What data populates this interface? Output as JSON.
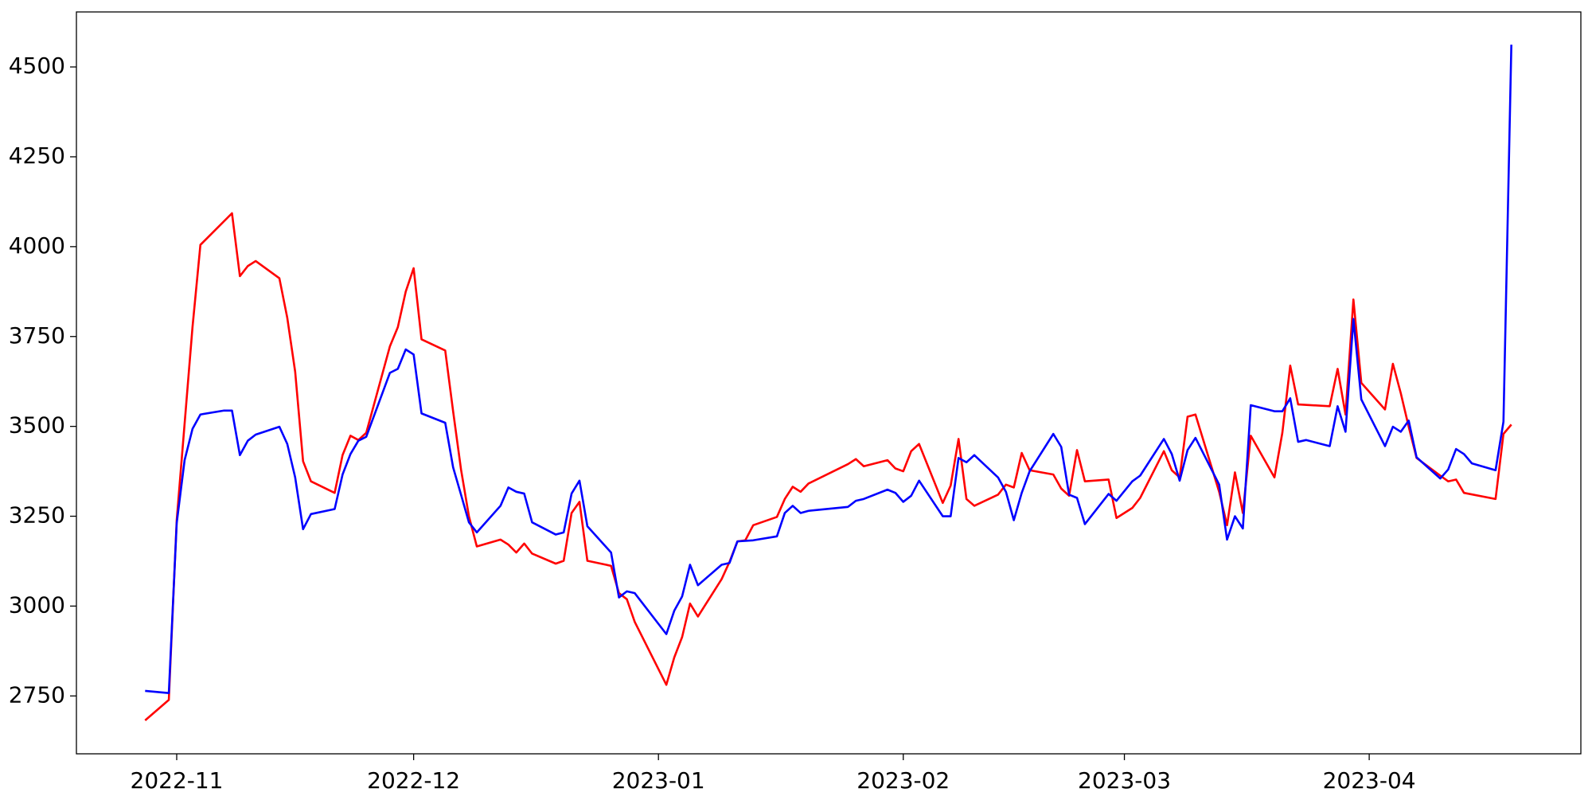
{
  "chart_data": {
    "type": "line",
    "xlim": [
      19284.3,
      19474.8
    ],
    "ylim": [
      2589,
      4653
    ],
    "xticks": [
      {
        "value": 19297,
        "label": "2022-11"
      },
      {
        "value": 19327,
        "label": "2022-12"
      },
      {
        "value": 19358,
        "label": "2023-01"
      },
      {
        "value": 19389,
        "label": "2023-02"
      },
      {
        "value": 19417,
        "label": "2023-03"
      },
      {
        "value": 19448,
        "label": "2023-04"
      }
    ],
    "yticks": [
      2750,
      3000,
      3250,
      3500,
      3750,
      4000,
      4250,
      4500
    ],
    "grid": false,
    "series": [
      {
        "color": "#ff0000",
        "x": [
          19293,
          19296,
          19297,
          19299,
          19300,
          19304,
          19305,
          19306,
          19307,
          19310,
          19311,
          19312,
          19313,
          19314,
          19317,
          19318,
          19319,
          19320,
          19321,
          19324,
          19325,
          19326,
          19327,
          19328,
          19331,
          19332,
          19333,
          19334,
          19335,
          19338,
          19339,
          19340,
          19341,
          19342,
          19345,
          19346,
          19347,
          19348,
          19349,
          19352,
          19353,
          19354,
          19355,
          19359,
          19360,
          19361,
          19362,
          19363,
          19366,
          19367,
          19368,
          19369,
          19370,
          19373,
          19374,
          19375,
          19376,
          19377,
          19382,
          19383,
          19384,
          19387,
          19388,
          19389,
          19390,
          19391,
          19394,
          19395,
          19396,
          19397,
          19398,
          19401,
          19402,
          19403,
          19404,
          19405,
          19408,
          19409,
          19410,
          19411,
          19412,
          19415,
          19416,
          19418,
          19419,
          19422,
          19423,
          19424,
          19425,
          19426,
          19429,
          19430,
          19431,
          19432,
          19433,
          19436,
          19437,
          19438,
          19439,
          19443,
          19444,
          19445,
          19446,
          19447,
          19450,
          19451,
          19452,
          19453,
          19454,
          19457,
          19458,
          19459,
          19460,
          19464,
          19465,
          19466
        ],
        "values": [
          2682,
          2739,
          3239,
          3776,
          4005,
          4093,
          3918,
          3946,
          3960,
          3912,
          3802,
          3652,
          3403,
          3347,
          3315,
          3420,
          3474,
          3462,
          3482,
          3723,
          3776,
          3875,
          3940,
          3742,
          3711,
          3542,
          3380,
          3250,
          3166,
          3185,
          3171,
          3149,
          3174,
          3146,
          3118,
          3126,
          3259,
          3290,
          3126,
          3112,
          3036,
          3019,
          2956,
          2781,
          2857,
          2914,
          3007,
          2971,
          3075,
          3123,
          3180,
          3183,
          3225,
          3248,
          3298,
          3332,
          3318,
          3341,
          3395,
          3409,
          3389,
          3406,
          3383,
          3375,
          3431,
          3451,
          3287,
          3335,
          3465,
          3298,
          3279,
          3310,
          3338,
          3330,
          3426,
          3378,
          3366,
          3327,
          3307,
          3434,
          3347,
          3352,
          3245,
          3273,
          3301,
          3431,
          3378,
          3358,
          3527,
          3533,
          3318,
          3225,
          3372,
          3259,
          3474,
          3358,
          3482,
          3669,
          3561,
          3556,
          3660,
          3533,
          3853,
          3621,
          3547,
          3674,
          3592,
          3499,
          3412,
          3363,
          3347,
          3352,
          3315,
          3298,
          3479,
          3505
        ]
      },
      {
        "color": "#0000ff",
        "x": [
          19293,
          19296,
          19297,
          19298,
          19299,
          19300,
          19303,
          19304,
          19305,
          19306,
          19307,
          19310,
          19311,
          19312,
          19313,
          19314,
          19317,
          19318,
          19319,
          19320,
          19321,
          19324,
          19325,
          19326,
          19327,
          19328,
          19331,
          19332,
          19333,
          19334,
          19335,
          19338,
          19339,
          19340,
          19341,
          19342,
          19345,
          19346,
          19347,
          19348,
          19349,
          19352,
          19353,
          19354,
          19355,
          19359,
          19360,
          19361,
          19362,
          19363,
          19366,
          19367,
          19368,
          19370,
          19373,
          19374,
          19375,
          19376,
          19377,
          19382,
          19383,
          19384,
          19387,
          19388,
          19389,
          19390,
          19391,
          19394,
          19395,
          19396,
          19397,
          19398,
          19401,
          19402,
          19403,
          19404,
          19405,
          19408,
          19409,
          19410,
          19411,
          19412,
          19415,
          19416,
          19418,
          19419,
          19422,
          19423,
          19424,
          19425,
          19426,
          19429,
          19430,
          19431,
          19432,
          19433,
          19436,
          19437,
          19438,
          19439,
          19440,
          19443,
          19444,
          19445,
          19446,
          19447,
          19450,
          19451,
          19452,
          19453,
          19454,
          19457,
          19458,
          19459,
          19460,
          19461,
          19464,
          19465,
          19466
        ],
        "values": [
          2764,
          2758,
          3231,
          3406,
          3493,
          3533,
          3544,
          3544,
          3420,
          3460,
          3477,
          3499,
          3451,
          3358,
          3214,
          3256,
          3270,
          3366,
          3423,
          3460,
          3471,
          3649,
          3660,
          3714,
          3700,
          3536,
          3510,
          3386,
          3310,
          3233,
          3205,
          3279,
          3330,
          3318,
          3313,
          3233,
          3199,
          3205,
          3313,
          3349,
          3222,
          3149,
          3024,
          3041,
          3036,
          2922,
          2987,
          3027,
          3115,
          3058,
          3115,
          3120,
          3180,
          3183,
          3194,
          3259,
          3279,
          3259,
          3265,
          3276,
          3293,
          3298,
          3324,
          3315,
          3290,
          3307,
          3349,
          3250,
          3250,
          3412,
          3400,
          3420,
          3358,
          3318,
          3239,
          3315,
          3375,
          3479,
          3443,
          3310,
          3301,
          3228,
          3312,
          3293,
          3347,
          3363,
          3465,
          3423,
          3349,
          3434,
          3468,
          3338,
          3185,
          3250,
          3216,
          3559,
          3542,
          3542,
          3578,
          3457,
          3462,
          3445,
          3556,
          3485,
          3799,
          3575,
          3445,
          3499,
          3485,
          3516,
          3414,
          3355,
          3380,
          3437,
          3423,
          3397,
          3378,
          3513,
          4562
        ]
      }
    ]
  }
}
